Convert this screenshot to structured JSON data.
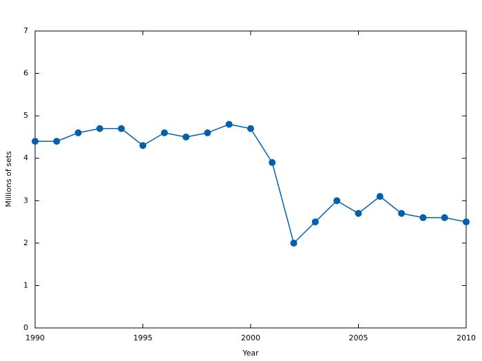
{
  "chart_data": {
    "type": "line",
    "x_label": "Year",
    "y_label": "Millions of sets",
    "x": [
      1990,
      1991,
      1992,
      1993,
      1994,
      1995,
      1996,
      1997,
      1998,
      1999,
      2000,
      2001,
      2002,
      2003,
      2004,
      2005,
      2006,
      2007,
      2008,
      2009,
      2010
    ],
    "values": [
      4.4,
      4.4,
      4.6,
      4.7,
      4.7,
      4.3,
      4.6,
      4.5,
      4.6,
      4.8,
      4.7,
      3.9,
      2.0,
      2.5,
      3.0,
      2.7,
      3.1,
      2.7,
      2.6,
      2.6,
      2.5
    ],
    "color": "#0060ad",
    "xlim": [
      1990,
      2010
    ],
    "xticks": [
      1990,
      1995,
      2000,
      2005,
      2010
    ],
    "ylim": [
      0,
      7
    ],
    "yticks": [
      0,
      1,
      2,
      3,
      4,
      5,
      6,
      7
    ],
    "grid": false
  }
}
